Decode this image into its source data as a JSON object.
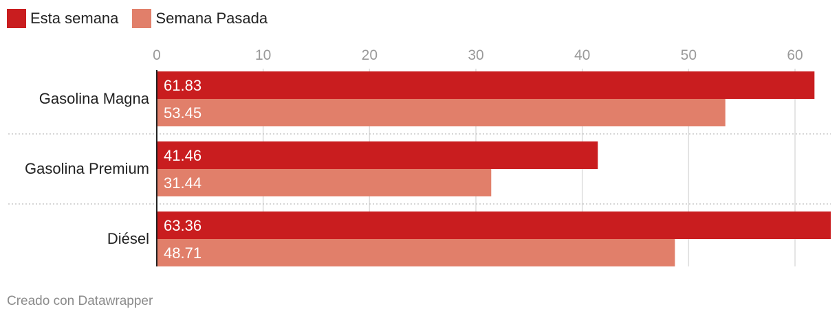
{
  "legend": {
    "items": [
      {
        "label": "Esta semana",
        "color": "#c91d1f"
      },
      {
        "label": "Semana Pasada",
        "color": "#e17f6a"
      }
    ]
  },
  "chart_data": {
    "type": "bar",
    "orientation": "horizontal",
    "categories": [
      "Gasolina Magna",
      "Gasolina Premium",
      "Diésel"
    ],
    "series": [
      {
        "name": "Esta semana",
        "values": [
          61.83,
          41.46,
          63.36
        ],
        "color": "#c91d1f"
      },
      {
        "name": "Semana Pasada",
        "values": [
          53.45,
          31.44,
          48.71
        ],
        "color": "#e17f6a"
      }
    ],
    "xlim": [
      0,
      63.36
    ],
    "xticks": [
      0,
      10,
      20,
      30,
      40,
      50,
      60
    ],
    "value_labels": "inside-left",
    "grid": true,
    "legend_position": "top-left"
  },
  "footer": {
    "text": "Creado con Datawrapper"
  }
}
